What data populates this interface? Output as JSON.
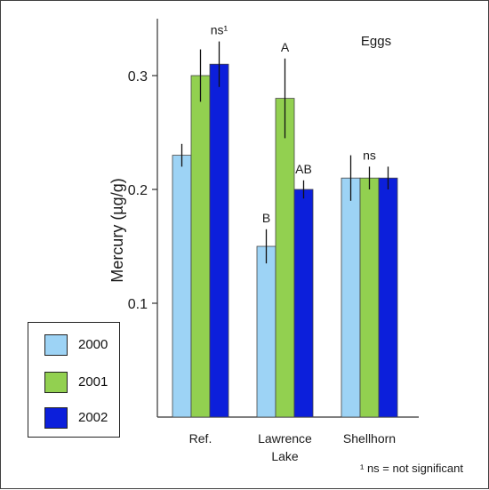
{
  "chart_data": {
    "type": "bar",
    "title": "Eggs",
    "ylabel": "Mercury (µg/g)",
    "xlabel": "",
    "categories": [
      "Ref.",
      "Lawrence Lake",
      "Shellhorn"
    ],
    "category_lines": [
      [
        "Ref."
      ],
      [
        "Lawrence",
        "Lake"
      ],
      [
        "Shellhorn"
      ]
    ],
    "ylim": [
      0.0,
      0.35
    ],
    "yticks": [
      0.1,
      0.2,
      0.3
    ],
    "ytick_labels": [
      "0.1",
      "0.2",
      "0.3"
    ],
    "series": [
      {
        "name": "2000",
        "color": "#9dd3f5",
        "values": [
          0.23,
          0.15,
          0.21
        ],
        "errors": [
          0.01,
          0.015,
          0.02
        ]
      },
      {
        "name": "2001",
        "color": "#92d050",
        "values": [
          0.3,
          0.28,
          0.21
        ],
        "errors": [
          0.023,
          0.035,
          0.01
        ]
      },
      {
        "name": "2002",
        "color": "#0c1fdb",
        "values": [
          0.31,
          0.2,
          0.21
        ],
        "errors": [
          0.02,
          0.008,
          0.01
        ]
      }
    ],
    "annotations": [
      {
        "category": 0,
        "series": 2,
        "text": "ns¹"
      },
      {
        "category": 1,
        "series": 0,
        "text": "B"
      },
      {
        "category": 1,
        "series": 1,
        "text": "A"
      },
      {
        "category": 1,
        "series": 2,
        "text": "AB"
      },
      {
        "category": 2,
        "series": 1,
        "text": "ns"
      }
    ],
    "footnote": "¹ ns = not significant",
    "legend_placement": "bottom-left",
    "grid": false
  }
}
